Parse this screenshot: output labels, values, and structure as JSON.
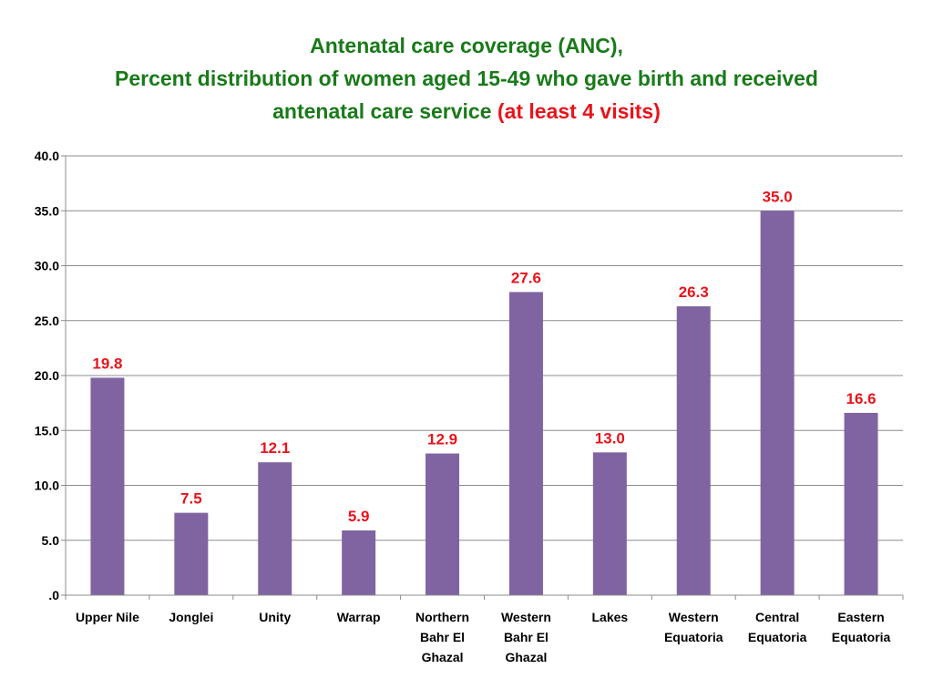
{
  "title": {
    "line1": "Antenatal care coverage (ANC),",
    "line2": "Percent distribution of women aged 15-49 who gave birth and received",
    "line3_main": "antenatal care service",
    "line3_highlight": "(at least 4 visits)"
  },
  "colors": {
    "title": "#1a7a1a",
    "highlight": "#e8141c",
    "bar": "#8064a2",
    "data_label": "#e8141c",
    "grid": "#8c8c8c"
  },
  "chart_data": {
    "type": "bar",
    "categories": [
      [
        "Upper Nile"
      ],
      [
        "Jonglei"
      ],
      [
        "Unity"
      ],
      [
        "Warrap"
      ],
      [
        "Northern",
        "Bahr El",
        "Ghazal"
      ],
      [
        "Western",
        "Bahr El",
        "Ghazal"
      ],
      [
        "Lakes"
      ],
      [
        "Western",
        "Equatoria"
      ],
      [
        "Central",
        "Equatoria"
      ],
      [
        "Eastern",
        "Equatoria"
      ]
    ],
    "values": [
      19.8,
      7.5,
      12.1,
      5.9,
      12.9,
      27.6,
      13.0,
      26.3,
      35.0,
      16.6
    ],
    "value_labels": [
      "19.8",
      "7.5",
      "12.1",
      "5.9",
      "12.9",
      "27.6",
      "13.0",
      "26.3",
      "35.0",
      "16.6"
    ],
    "ylim": [
      0,
      40
    ],
    "yticks": [
      0,
      5,
      10,
      15,
      20,
      25,
      30,
      35,
      40
    ],
    "ytick_labels": [
      ".0",
      "5.0",
      "10.0",
      "15.0",
      "20.0",
      "25.0",
      "30.0",
      "35.0",
      "40.0"
    ],
    "grid": true,
    "legend": "none"
  }
}
